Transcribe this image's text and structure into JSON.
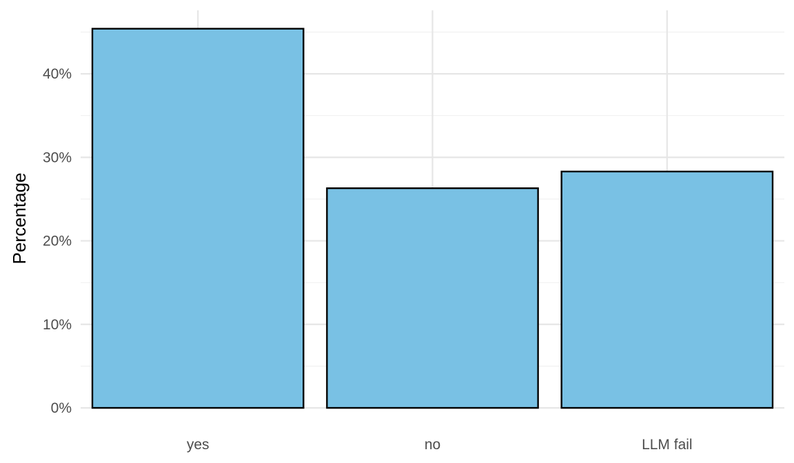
{
  "chart_data": {
    "type": "bar",
    "title": "",
    "xlabel": "",
    "ylabel": "Percentage",
    "categories": [
      "yes",
      "no",
      "LLM fail"
    ],
    "values": [
      45.4,
      26.3,
      28.3
    ],
    "value_unit": "%",
    "ylim": [
      0,
      47.6
    ],
    "yticks": [
      0,
      10,
      20,
      30,
      40
    ],
    "ytick_labels": [
      "0%",
      "10%",
      "20%",
      "30%",
      "40%"
    ],
    "grid": true,
    "legend": "none",
    "colors": {
      "bar_fill": "#79c1e4",
      "bar_stroke": "#000000",
      "grid_major": "#e6e6e6",
      "grid_minor": "#f0f0f0",
      "tick_text": "#4d4d4d",
      "axis_title": "#000000"
    }
  }
}
